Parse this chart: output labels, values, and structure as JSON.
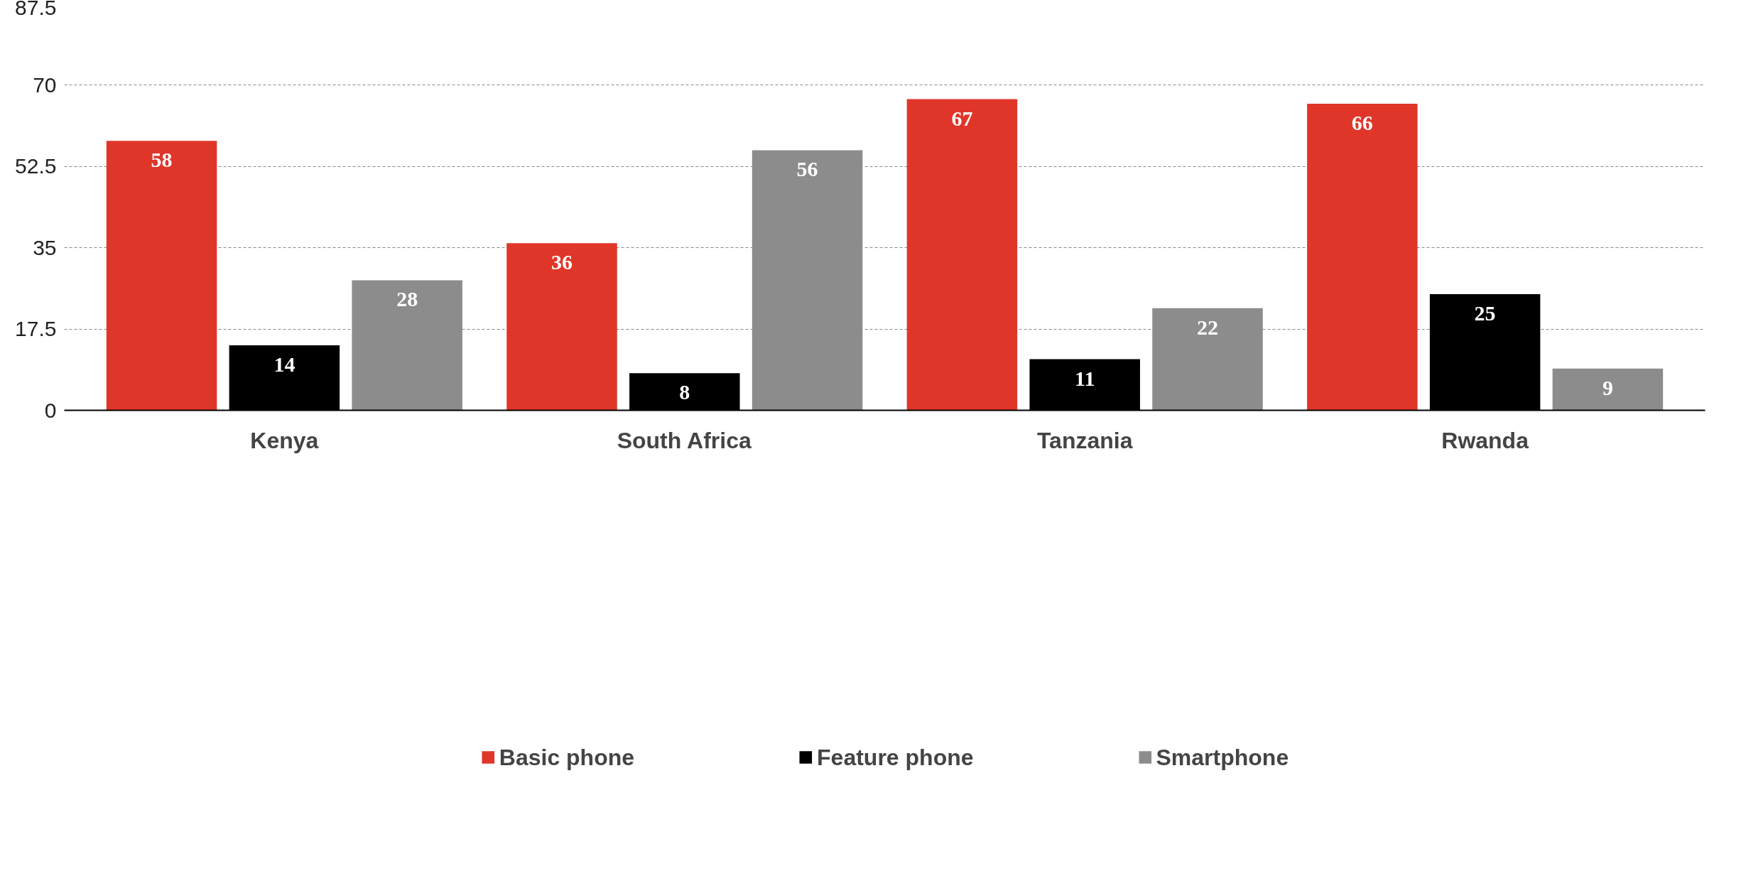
{
  "chart_data": {
    "type": "bar",
    "categories": [
      "Kenya",
      "South Africa",
      "Tanzania",
      "Rwanda"
    ],
    "series": [
      {
        "name": "Basic phone",
        "color": "#e0362a",
        "values": [
          58,
          36,
          67,
          66
        ]
      },
      {
        "name": "Feature phone",
        "color": "#000000",
        "values": [
          14,
          8,
          11,
          25
        ]
      },
      {
        "name": "Smartphone",
        "color": "#8c8c8c",
        "values": [
          28,
          56,
          22,
          9
        ]
      }
    ],
    "ylim": [
      0,
      87.5
    ],
    "yticks": [
      0,
      17.5,
      35,
      52.5,
      70,
      87.5
    ],
    "grid": "y",
    "legend": "bottom",
    "data_labels": true
  }
}
